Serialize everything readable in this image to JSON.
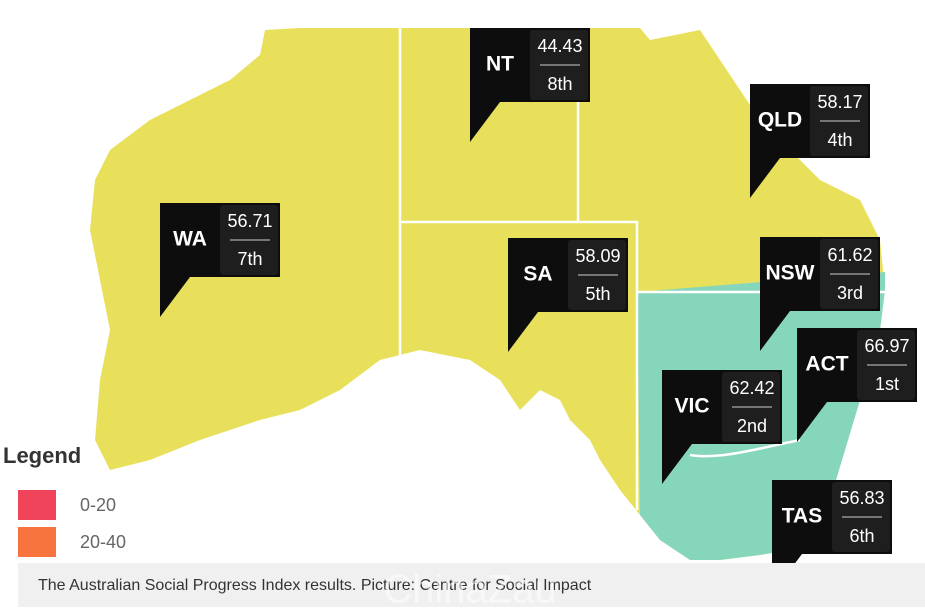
{
  "regions": [
    {
      "label": "NT",
      "score": "44.43",
      "rank": "8th"
    },
    {
      "label": "QLD",
      "score": "58.17",
      "rank": "4th"
    },
    {
      "label": "WA",
      "score": "56.71",
      "rank": "7th"
    },
    {
      "label": "SA",
      "score": "58.09",
      "rank": "5th"
    },
    {
      "label": "NSW",
      "score": "61.62",
      "rank": "3rd"
    },
    {
      "label": "ACT",
      "score": "66.97",
      "rank": "1st"
    },
    {
      "label": "VIC",
      "score": "62.42",
      "rank": "2nd"
    },
    {
      "label": "TAS",
      "score": "56.83",
      "rank": "6th"
    }
  ],
  "legend": {
    "title": "Legend",
    "items": [
      "0-20",
      "20-40"
    ]
  },
  "caption": "The Australian Social Progress Index results. Picture: Centre for Social Impact",
  "watermark": "ChinaZau"
}
